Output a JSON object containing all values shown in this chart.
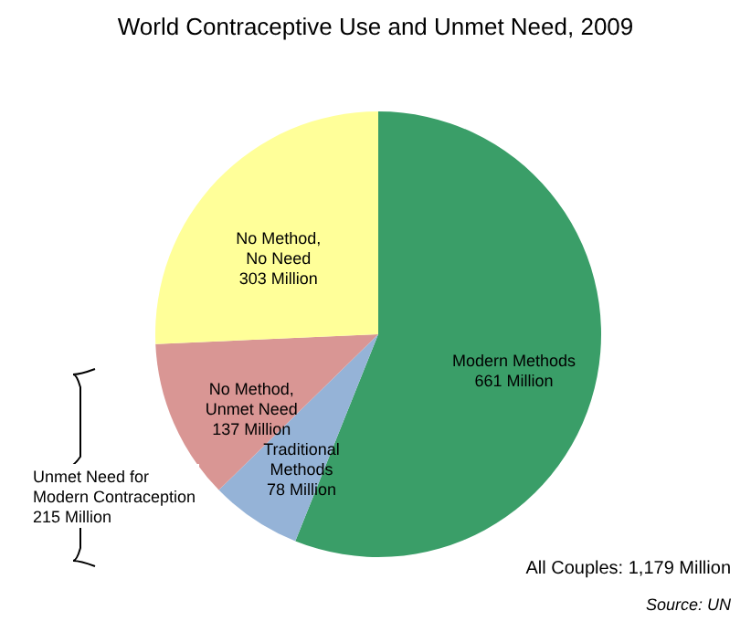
{
  "chart_data": {
    "type": "pie",
    "title": "World Contraceptive Use and Unmet Need, 2009",
    "categories": [
      "Modern Methods",
      "Traditional\nMethods",
      "No Method,\nUnmet Need",
      "No Method,\nNo Need"
    ],
    "values": [
      661,
      78,
      137,
      303
    ],
    "colors": [
      "#3a9e68",
      "#95b3d7",
      "#d99694",
      "#ffff99"
    ],
    "value_labels": [
      "661 Million",
      "78 Million",
      "137 Million",
      "303 Million"
    ],
    "annotations": [
      "Unmet Need for\nModern Contraception\n215 Million",
      "All Couples: 1,179 Million",
      "Source: UN"
    ]
  }
}
